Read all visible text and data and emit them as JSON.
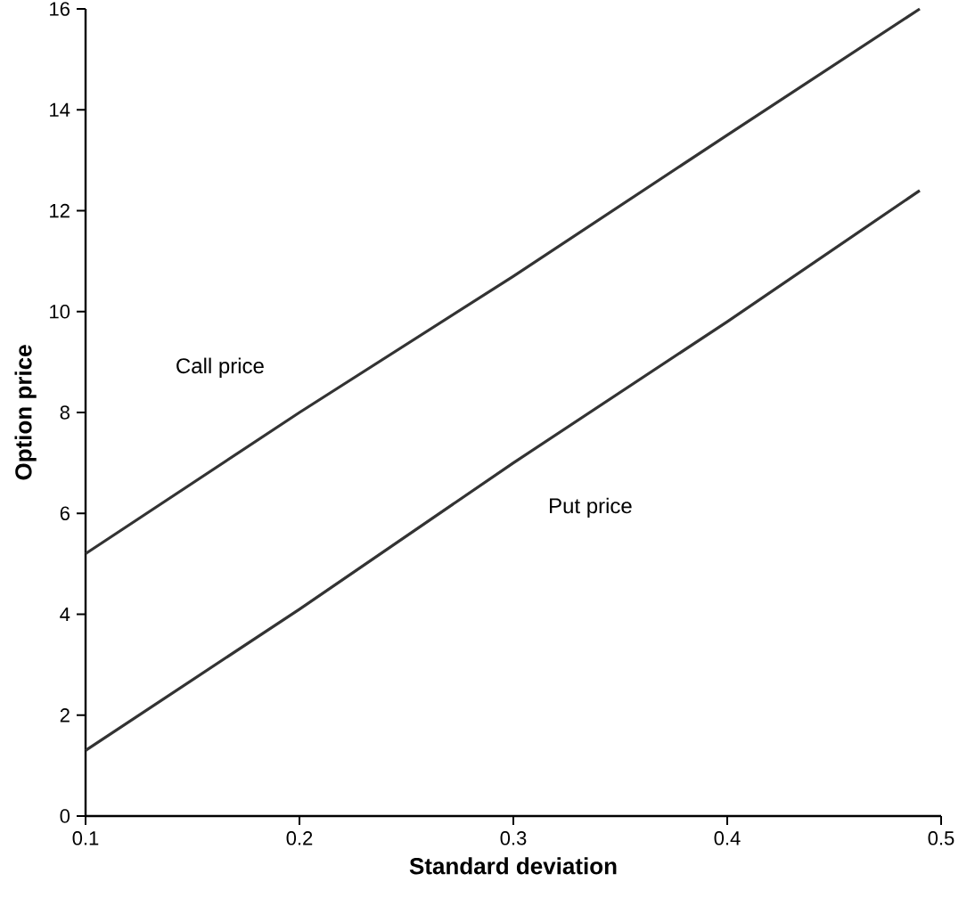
{
  "chart_data": {
    "type": "line",
    "xlabel": "Standard deviation",
    "ylabel": "Option price",
    "xlim": [
      0.1,
      0.5
    ],
    "ylim": [
      0,
      16
    ],
    "xticks": [
      0.1,
      0.2,
      0.3,
      0.4,
      0.5
    ],
    "yticks": [
      0,
      2,
      4,
      6,
      8,
      10,
      12,
      14,
      16
    ],
    "grid": false,
    "legend": false,
    "series": [
      {
        "name": "Call price",
        "color": "#333333",
        "x": [
          0.1,
          0.2,
          0.3,
          0.4,
          0.49
        ],
        "values": [
          5.2,
          8.0,
          10.7,
          13.5,
          16
        ]
      },
      {
        "name": "Put price",
        "color": "#333333",
        "x": [
          0.1,
          0.2,
          0.3,
          0.4,
          0.49
        ],
        "values": [
          1.3,
          4.1,
          7.0,
          9.8,
          12.4
        ]
      }
    ]
  }
}
